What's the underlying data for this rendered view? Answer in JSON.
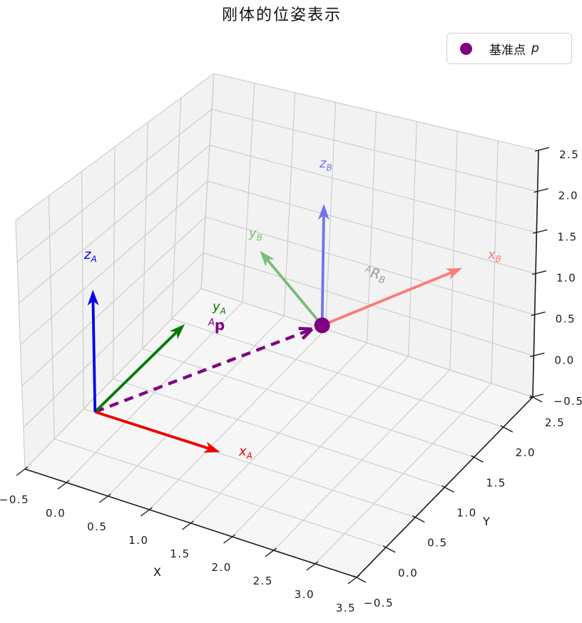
{
  "figure": {
    "title": "刚体的位姿表示"
  },
  "legend": {
    "label": "基准点",
    "symbol": "p",
    "marker_color": "#800080"
  },
  "labels": {
    "x_a": {
      "base": "x",
      "sub": "A"
    },
    "y_a": {
      "base": "y",
      "sub": "A"
    },
    "z_a": {
      "base": "z",
      "sub": "A"
    },
    "x_b": {
      "base": "x",
      "sub": "B"
    },
    "y_b": {
      "base": "y",
      "sub": "B"
    },
    "z_b": {
      "base": "z",
      "sub": "B"
    },
    "p_vector": {
      "sup": "A",
      "base": "p"
    },
    "rotation": {
      "sup": "A",
      "base": "R",
      "sub": "B"
    }
  },
  "chart_data": {
    "type": "scatter",
    "subtype": "3d-coordinate-frames",
    "title": "刚体的位姿表示",
    "legend_entries": [
      {
        "label": "基准点 p",
        "marker": "circle",
        "color": "#800080"
      }
    ],
    "grid": true,
    "axes": {
      "x": {
        "label": "X",
        "range": [
          -0.5,
          3.5
        ],
        "tick_values": [
          -0.5,
          0,
          0.5,
          1,
          1.5,
          2,
          2.5,
          3,
          3.5
        ],
        "tick_labels": [
          "−0.5",
          "0.0",
          "0.5",
          "1.0",
          "1.5",
          "2.0",
          "2.5",
          "3.0",
          "3.5"
        ]
      },
      "y": {
        "label": "Y",
        "range": [
          -0.5,
          2.5
        ],
        "tick_values": [
          -0.5,
          0,
          0.5,
          1,
          1.5,
          2,
          2.5
        ],
        "tick_labels": [
          "−0.5",
          "0.0",
          "0.5",
          "1.0",
          "1.5",
          "2.0",
          "2.5"
        ]
      },
      "z": {
        "label": "",
        "range": [
          -0.5,
          2.5
        ],
        "tick_values": [
          -0.5,
          0,
          0.5,
          1,
          1.5,
          2,
          2.5
        ],
        "tick_labels": [
          "−0.5",
          "0.0",
          "0.5",
          "1.0",
          "1.5",
          "2.0",
          "2.5"
        ]
      }
    },
    "frames": [
      {
        "name": "A",
        "origin": [
          0,
          0,
          0
        ],
        "arrows": [
          {
            "label": "x_A",
            "vector": [
              1.5,
              0,
              0
            ],
            "color": "#ee0000"
          },
          {
            "label": "y_A",
            "vector": [
              0,
              1.5,
              0
            ],
            "color": "#007a00"
          },
          {
            "label": "z_A",
            "vector": [
              0,
              0,
              1.5
            ],
            "color": "#0000ee"
          }
        ]
      },
      {
        "name": "B",
        "origin": [
          2,
          1,
          1
        ],
        "rotation_about_z_deg": 60,
        "arrows": [
          {
            "label": "x_B",
            "vector": [
              0.75,
              1.3,
              0
            ],
            "color": "#f87c78"
          },
          {
            "label": "y_B",
            "vector": [
              -1.3,
              0.75,
              0
            ],
            "color": "#79bd79"
          },
          {
            "label": "z_B",
            "vector": [
              0,
              0,
              1.5
            ],
            "color": "#7173ef"
          }
        ]
      }
    ],
    "position_vector": {
      "label": "Ap",
      "from": [
        0,
        0,
        0
      ],
      "to": [
        2,
        1,
        1
      ],
      "color": "#800080",
      "line_style": "dashed"
    },
    "rotation_label": {
      "label": "A R B",
      "color": "#9a9a9a"
    },
    "reference_point": {
      "label": "基准点 p",
      "position": [
        2,
        1,
        1
      ],
      "color": "#800080",
      "marker": "circle"
    }
  }
}
